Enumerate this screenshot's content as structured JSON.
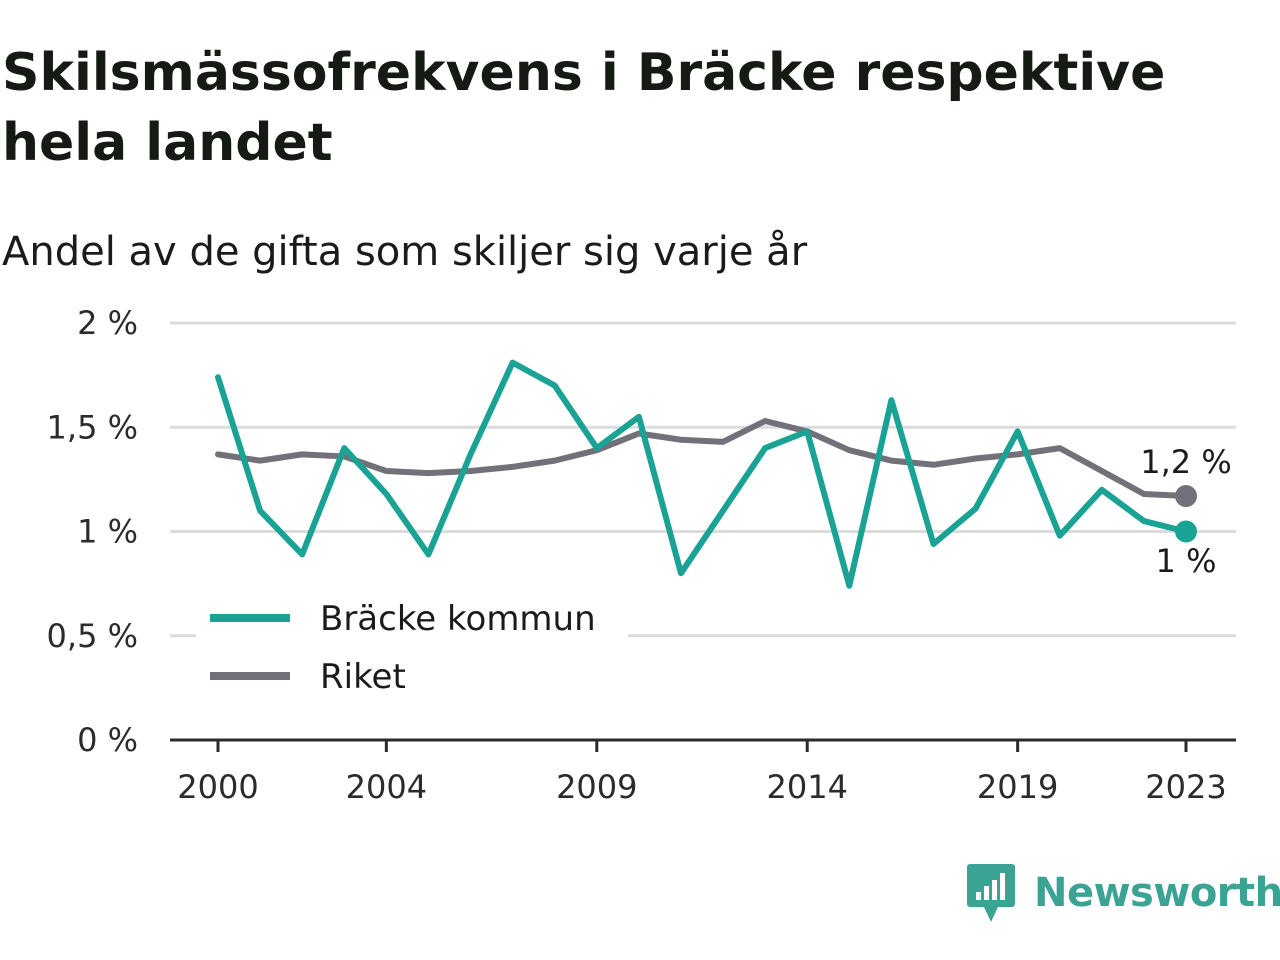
{
  "title": "Skilsmässofrekvens i Bräcke respektive hela landet",
  "subtitle": "Andel av de gifta som skiljer sig varje år",
  "brand": {
    "name": "Newsworthy",
    "icon": "newsworthy-logo-icon",
    "color": "#3ba394"
  },
  "chart_data": {
    "type": "line",
    "title": "Skilsmässofrekvens i Bräcke respektive hela landet",
    "subtitle": "Andel av de gifta som skiljer sig varje år",
    "x": [
      2000,
      2001,
      2002,
      2003,
      2004,
      2005,
      2006,
      2007,
      2008,
      2009,
      2010,
      2011,
      2012,
      2013,
      2014,
      2015,
      2016,
      2017,
      2018,
      2019,
      2020,
      2021,
      2022,
      2023
    ],
    "x_ticks": [
      "2000",
      "2004",
      "2009",
      "2014",
      "2019",
      "2023"
    ],
    "x_tick_values": [
      2000,
      2004,
      2009,
      2014,
      2019,
      2023
    ],
    "y_ticks": [
      "0 %",
      "0,5 %",
      "1 %",
      "1,5 %",
      "2 %"
    ],
    "y_tick_values": [
      0,
      0.5,
      1,
      1.5,
      2
    ],
    "ylim": [
      0,
      2
    ],
    "xlim": [
      2000,
      2023
    ],
    "grid": true,
    "legend_position": "bottom-left",
    "series": [
      {
        "name": "Bräcke kommun",
        "color": "#1aa394",
        "values": [
          1.74,
          1.1,
          0.89,
          1.4,
          1.18,
          0.89,
          1.37,
          1.81,
          1.7,
          1.4,
          1.55,
          0.8,
          1.1,
          1.4,
          1.48,
          0.74,
          1.63,
          0.94,
          1.11,
          1.48,
          0.98,
          1.2,
          1.05,
          1.0
        ],
        "end_label": "1 %"
      },
      {
        "name": "Riket",
        "color": "#727179",
        "values": [
          1.37,
          1.34,
          1.37,
          1.36,
          1.29,
          1.28,
          1.29,
          1.31,
          1.34,
          1.39,
          1.47,
          1.44,
          1.43,
          1.53,
          1.48,
          1.39,
          1.34,
          1.32,
          1.35,
          1.37,
          1.4,
          1.29,
          1.18,
          1.17
        ],
        "end_label": "1,2 %"
      }
    ]
  }
}
